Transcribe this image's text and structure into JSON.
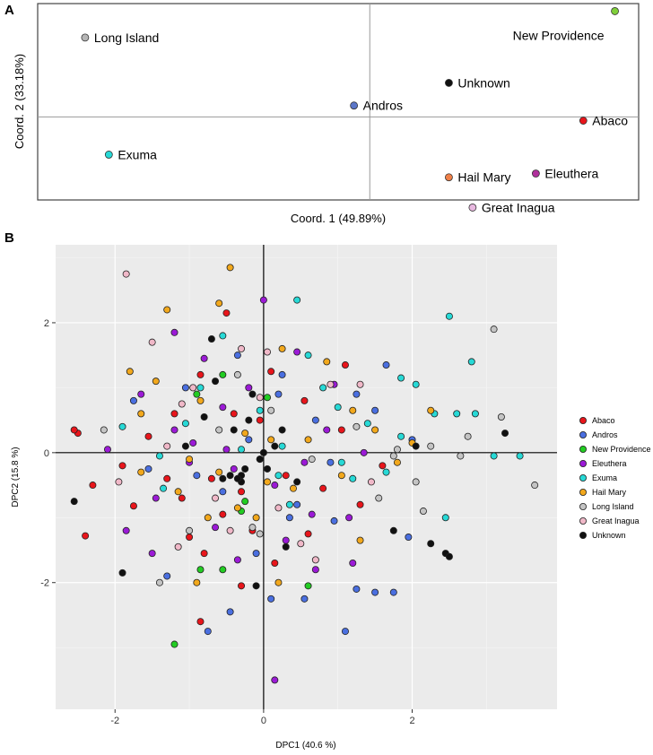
{
  "panel_a_label": "A",
  "panel_b_label": "B",
  "colors": {
    "Abaco": "#e8151b",
    "Andros": "#4a6fe0",
    "New Providence": "#22cc22",
    "Eleuthera": "#9b1ad6",
    "Exuma": "#27d9d6",
    "Hail Mary": "#f2a81c",
    "Long Island": "#c4c4c4",
    "Great Inagua": "#f0b8c8",
    "Unknown": "#111111"
  },
  "chart_data": [
    {
      "type": "scatter",
      "panel": "A",
      "xlabel": "Coord. 1 (49.89%)",
      "ylabel": "Coord. 2 (33.18%)",
      "xlim": [
        -0.42,
        0.34
      ],
      "ylim": [
        -0.22,
        0.3
      ],
      "points": [
        {
          "label": "Long Island",
          "x": -0.36,
          "y": 0.21,
          "color": "#b5b5b5"
        },
        {
          "label": "Exuma",
          "x": -0.33,
          "y": -0.1,
          "color": "#27d9d6"
        },
        {
          "label": "Andros",
          "x": -0.02,
          "y": 0.03,
          "color": "#5b76c8"
        },
        {
          "label": "Unknown",
          "x": 0.1,
          "y": 0.09,
          "color": "#111111"
        },
        {
          "label": "New Providence",
          "x": 0.31,
          "y": 0.28,
          "color": "#7fcf3a"
        },
        {
          "label": "Abaco",
          "x": 0.27,
          "y": -0.01,
          "color": "#e8151b"
        },
        {
          "label": "Eleuthera",
          "x": 0.21,
          "y": -0.15,
          "color": "#b0309c"
        },
        {
          "label": "Hail Mary",
          "x": 0.1,
          "y": -0.16,
          "color": "#f08048"
        },
        {
          "label": "Great Inagua",
          "x": 0.13,
          "y": -0.24,
          "color": "#e8b8e0"
        }
      ]
    },
    {
      "type": "scatter",
      "panel": "B",
      "xlabel": "DPC1 (40.6 %)",
      "ylabel": "DPC2 (15.8 %)",
      "xlim": [
        -2.8,
        3.95
      ],
      "ylim": [
        -3.95,
        3.2
      ],
      "x_ticks": [
        -2,
        0,
        2
      ],
      "y_ticks": [
        -2,
        0,
        2
      ],
      "x_tick_labels": [
        "-2",
        "0",
        "2"
      ],
      "y_tick_labels": [
        "-2",
        "0",
        "2"
      ],
      "legend_position": "right",
      "groups": [
        "Abaco",
        "Andros",
        "New Providence",
        "Eleuthera",
        "Exuma",
        "Hail Mary",
        "Long Island",
        "Great Inagua",
        "Unknown"
      ],
      "points": [
        [
          -2.5,
          0.3,
          "Abaco"
        ],
        [
          -2.55,
          0.35,
          "Abaco"
        ],
        [
          -2.4,
          -1.28,
          "Abaco"
        ],
        [
          -1.9,
          -0.2,
          "Abaco"
        ],
        [
          -1.75,
          -0.82,
          "Abaco"
        ],
        [
          -1.55,
          0.25,
          "Abaco"
        ],
        [
          -1.3,
          -0.4,
          "Abaco"
        ],
        [
          -1.2,
          0.6,
          "Abaco"
        ],
        [
          -1.0,
          -1.3,
          "Abaco"
        ],
        [
          -0.85,
          1.2,
          "Abaco"
        ],
        [
          -0.7,
          -0.4,
          "Abaco"
        ],
        [
          -0.55,
          -0.95,
          "Abaco"
        ],
        [
          -0.4,
          0.6,
          "Abaco"
        ],
        [
          -0.3,
          -0.6,
          "Abaco"
        ],
        [
          -0.15,
          -1.2,
          "Abaco"
        ],
        [
          -0.05,
          0.5,
          "Abaco"
        ],
        [
          0.1,
          1.25,
          "Abaco"
        ],
        [
          0.3,
          -0.35,
          "Abaco"
        ],
        [
          0.55,
          0.8,
          "Abaco"
        ],
        [
          0.8,
          -0.55,
          "Abaco"
        ],
        [
          1.1,
          1.35,
          "Abaco"
        ],
        [
          1.3,
          -0.8,
          "Abaco"
        ],
        [
          1.6,
          -0.2,
          "Abaco"
        ],
        [
          -0.3,
          -2.05,
          "Abaco"
        ],
        [
          -0.8,
          -1.55,
          "Abaco"
        ],
        [
          -0.5,
          2.15,
          "Abaco"
        ],
        [
          0.15,
          -1.7,
          "Abaco"
        ],
        [
          -1.1,
          -0.7,
          "Abaco"
        ],
        [
          1.05,
          0.35,
          "Abaco"
        ],
        [
          -0.85,
          -2.6,
          "Abaco"
        ],
        [
          -2.3,
          -0.5,
          "Abaco"
        ],
        [
          0.6,
          -1.25,
          "Abaco"
        ],
        [
          -1.75,
          0.8,
          "Andros"
        ],
        [
          -1.55,
          -0.25,
          "Andros"
        ],
        [
          -1.3,
          -1.9,
          "Andros"
        ],
        [
          -1.05,
          1.0,
          "Andros"
        ],
        [
          -0.9,
          -0.35,
          "Andros"
        ],
        [
          -0.75,
          -2.75,
          "Andros"
        ],
        [
          -0.45,
          -2.45,
          "Andros"
        ],
        [
          -0.35,
          1.5,
          "Andros"
        ],
        [
          -0.2,
          0.2,
          "Andros"
        ],
        [
          0.1,
          -2.25,
          "Andros"
        ],
        [
          0.2,
          0.9,
          "Andros"
        ],
        [
          0.35,
          -1.0,
          "Andros"
        ],
        [
          0.55,
          -2.25,
          "Andros"
        ],
        [
          0.7,
          0.5,
          "Andros"
        ],
        [
          0.9,
          -0.15,
          "Andros"
        ],
        [
          1.1,
          -2.75,
          "Andros"
        ],
        [
          1.25,
          0.9,
          "Andros"
        ],
        [
          1.5,
          -2.15,
          "Andros"
        ],
        [
          1.65,
          1.35,
          "Andros"
        ],
        [
          1.75,
          -2.15,
          "Andros"
        ],
        [
          1.95,
          -1.3,
          "Andros"
        ],
        [
          2.0,
          0.2,
          "Andros"
        ],
        [
          0.25,
          1.2,
          "Andros"
        ],
        [
          0.45,
          -0.8,
          "Andros"
        ],
        [
          -0.1,
          -1.55,
          "Andros"
        ],
        [
          1.25,
          -2.1,
          "Andros"
        ],
        [
          0.95,
          -1.05,
          "Andros"
        ],
        [
          -0.55,
          -0.6,
          "Andros"
        ],
        [
          1.5,
          0.65,
          "Andros"
        ],
        [
          -1.2,
          -2.95,
          "New Providence"
        ],
        [
          -0.9,
          0.9,
          "New Providence"
        ],
        [
          -0.55,
          -1.8,
          "New Providence"
        ],
        [
          -0.3,
          -0.9,
          "New Providence"
        ],
        [
          0.05,
          0.85,
          "New Providence"
        ],
        [
          0.6,
          -2.05,
          "New Providence"
        ],
        [
          -0.85,
          -1.8,
          "New Providence"
        ],
        [
          -0.25,
          -0.75,
          "New Providence"
        ],
        [
          -0.55,
          1.2,
          "New Providence"
        ],
        [
          -2.1,
          0.05,
          "Eleuthera"
        ],
        [
          -1.85,
          -1.2,
          "Eleuthera"
        ],
        [
          -1.65,
          0.9,
          "Eleuthera"
        ],
        [
          -1.45,
          -0.7,
          "Eleuthera"
        ],
        [
          -1.2,
          0.35,
          "Eleuthera"
        ],
        [
          -1.0,
          -0.15,
          "Eleuthera"
        ],
        [
          -0.8,
          1.45,
          "Eleuthera"
        ],
        [
          -0.65,
          -1.15,
          "Eleuthera"
        ],
        [
          -0.5,
          0.05,
          "Eleuthera"
        ],
        [
          -0.35,
          -1.65,
          "Eleuthera"
        ],
        [
          -0.2,
          1.0,
          "Eleuthera"
        ],
        [
          0.0,
          2.35,
          "Eleuthera"
        ],
        [
          0.15,
          -0.5,
          "Eleuthera"
        ],
        [
          0.3,
          -1.35,
          "Eleuthera"
        ],
        [
          0.45,
          1.55,
          "Eleuthera"
        ],
        [
          0.65,
          -0.95,
          "Eleuthera"
        ],
        [
          0.85,
          0.35,
          "Eleuthera"
        ],
        [
          1.15,
          -1.0,
          "Eleuthera"
        ],
        [
          1.35,
          0.0,
          "Eleuthera"
        ],
        [
          0.15,
          -3.5,
          "Eleuthera"
        ],
        [
          -1.2,
          1.85,
          "Eleuthera"
        ],
        [
          -0.55,
          0.7,
          "Eleuthera"
        ],
        [
          0.7,
          -1.8,
          "Eleuthera"
        ],
        [
          1.2,
          -1.7,
          "Eleuthera"
        ],
        [
          -1.5,
          -1.55,
          "Eleuthera"
        ],
        [
          -0.05,
          -0.1,
          "Eleuthera"
        ],
        [
          0.95,
          1.05,
          "Eleuthera"
        ],
        [
          -0.95,
          0.15,
          "Eleuthera"
        ],
        [
          0.55,
          -0.15,
          "Eleuthera"
        ],
        [
          -0.4,
          -0.25,
          "Eleuthera"
        ],
        [
          -1.9,
          0.4,
          "Exuma"
        ],
        [
          -1.4,
          -0.05,
          "Exuma"
        ],
        [
          -1.05,
          0.45,
          "Exuma"
        ],
        [
          -0.55,
          1.8,
          "Exuma"
        ],
        [
          -0.3,
          0.05,
          "Exuma"
        ],
        [
          -0.05,
          0.65,
          "Exuma"
        ],
        [
          0.2,
          -0.35,
          "Exuma"
        ],
        [
          0.45,
          2.35,
          "Exuma"
        ],
        [
          0.6,
          1.5,
          "Exuma"
        ],
        [
          0.8,
          1.0,
          "Exuma"
        ],
        [
          1.0,
          0.7,
          "Exuma"
        ],
        [
          1.2,
          -0.4,
          "Exuma"
        ],
        [
          1.4,
          0.45,
          "Exuma"
        ],
        [
          1.65,
          -0.3,
          "Exuma"
        ],
        [
          1.85,
          0.25,
          "Exuma"
        ],
        [
          2.05,
          1.05,
          "Exuma"
        ],
        [
          2.3,
          0.6,
          "Exuma"
        ],
        [
          2.5,
          2.1,
          "Exuma"
        ],
        [
          2.6,
          0.6,
          "Exuma"
        ],
        [
          2.8,
          1.4,
          "Exuma"
        ],
        [
          2.85,
          0.6,
          "Exuma"
        ],
        [
          3.1,
          -0.05,
          "Exuma"
        ],
        [
          3.45,
          -0.05,
          "Exuma"
        ],
        [
          2.45,
          -1.0,
          "Exuma"
        ],
        [
          1.85,
          1.15,
          "Exuma"
        ],
        [
          0.35,
          -0.8,
          "Exuma"
        ],
        [
          -0.85,
          1.0,
          "Exuma"
        ],
        [
          -1.35,
          -0.55,
          "Exuma"
        ],
        [
          0.25,
          0.1,
          "Exuma"
        ],
        [
          1.05,
          -0.15,
          "Exuma"
        ],
        [
          -1.8,
          1.25,
          "Hail Mary"
        ],
        [
          -1.65,
          0.6,
          "Hail Mary"
        ],
        [
          -1.3,
          2.2,
          "Hail Mary"
        ],
        [
          -1.15,
          -0.6,
          "Hail Mary"
        ],
        [
          -1.0,
          -0.1,
          "Hail Mary"
        ],
        [
          -0.85,
          0.8,
          "Hail Mary"
        ],
        [
          -0.75,
          -1.0,
          "Hail Mary"
        ],
        [
          -0.6,
          2.3,
          "Hail Mary"
        ],
        [
          -0.45,
          2.85,
          "Hail Mary"
        ],
        [
          -0.25,
          0.3,
          "Hail Mary"
        ],
        [
          -0.1,
          -1.0,
          "Hail Mary"
        ],
        [
          0.1,
          0.2,
          "Hail Mary"
        ],
        [
          0.25,
          1.6,
          "Hail Mary"
        ],
        [
          0.4,
          -0.55,
          "Hail Mary"
        ],
        [
          0.6,
          0.2,
          "Hail Mary"
        ],
        [
          0.85,
          1.4,
          "Hail Mary"
        ],
        [
          1.05,
          -0.35,
          "Hail Mary"
        ],
        [
          1.3,
          -1.35,
          "Hail Mary"
        ],
        [
          1.5,
          0.35,
          "Hail Mary"
        ],
        [
          1.8,
          -0.15,
          "Hail Mary"
        ],
        [
          2.0,
          0.15,
          "Hail Mary"
        ],
        [
          2.25,
          0.65,
          "Hail Mary"
        ],
        [
          -1.65,
          -0.3,
          "Hail Mary"
        ],
        [
          -0.9,
          -2.0,
          "Hail Mary"
        ],
        [
          0.2,
          -2.0,
          "Hail Mary"
        ],
        [
          -0.35,
          -0.85,
          "Hail Mary"
        ],
        [
          0.05,
          -0.45,
          "Hail Mary"
        ],
        [
          -1.45,
          1.1,
          "Hail Mary"
        ],
        [
          1.2,
          0.65,
          "Hail Mary"
        ],
        [
          -0.6,
          -0.3,
          "Hail Mary"
        ],
        [
          -2.15,
          0.35,
          "Long Island"
        ],
        [
          -1.4,
          -2.0,
          "Long Island"
        ],
        [
          -1.0,
          -1.2,
          "Long Island"
        ],
        [
          -0.6,
          0.35,
          "Long Island"
        ],
        [
          -0.35,
          1.2,
          "Long Island"
        ],
        [
          -0.15,
          -1.15,
          "Long Island"
        ],
        [
          0.1,
          0.65,
          "Long Island"
        ],
        [
          0.65,
          -0.1,
          "Long Island"
        ],
        [
          1.25,
          0.4,
          "Long Island"
        ],
        [
          1.55,
          -0.7,
          "Long Island"
        ],
        [
          1.8,
          0.05,
          "Long Island"
        ],
        [
          2.05,
          -0.45,
          "Long Island"
        ],
        [
          2.25,
          0.1,
          "Long Island"
        ],
        [
          2.65,
          -0.05,
          "Long Island"
        ],
        [
          2.75,
          0.25,
          "Long Island"
        ],
        [
          3.1,
          1.9,
          "Long Island"
        ],
        [
          3.2,
          0.55,
          "Long Island"
        ],
        [
          3.65,
          -0.5,
          "Long Island"
        ],
        [
          2.15,
          -0.9,
          "Long Island"
        ],
        [
          1.75,
          -0.05,
          "Long Island"
        ],
        [
          -0.05,
          -1.25,
          "Long Island"
        ],
        [
          -1.95,
          -0.45,
          "Great Inagua"
        ],
        [
          -1.85,
          2.75,
          "Great Inagua"
        ],
        [
          -1.3,
          0.1,
          "Great Inagua"
        ],
        [
          -1.15,
          -1.45,
          "Great Inagua"
        ],
        [
          -0.95,
          1.0,
          "Great Inagua"
        ],
        [
          -0.65,
          -0.7,
          "Great Inagua"
        ],
        [
          -0.3,
          1.6,
          "Great Inagua"
        ],
        [
          -0.05,
          0.85,
          "Great Inagua"
        ],
        [
          0.2,
          -0.85,
          "Great Inagua"
        ],
        [
          0.5,
          -1.4,
          "Great Inagua"
        ],
        [
          0.7,
          -1.65,
          "Great Inagua"
        ],
        [
          0.9,
          1.05,
          "Great Inagua"
        ],
        [
          1.3,
          1.05,
          "Great Inagua"
        ],
        [
          1.45,
          -0.45,
          "Great Inagua"
        ],
        [
          -1.1,
          0.75,
          "Great Inagua"
        ],
        [
          -0.45,
          -1.2,
          "Great Inagua"
        ],
        [
          0.05,
          1.55,
          "Great Inagua"
        ],
        [
          -1.5,
          1.7,
          "Great Inagua"
        ],
        [
          -2.55,
          -0.75,
          "Unknown"
        ],
        [
          -1.9,
          -1.85,
          "Unknown"
        ],
        [
          -1.05,
          0.1,
          "Unknown"
        ],
        [
          -0.8,
          0.55,
          "Unknown"
        ],
        [
          -0.65,
          1.1,
          "Unknown"
        ],
        [
          -0.55,
          -0.4,
          "Unknown"
        ],
        [
          -0.4,
          0.35,
          "Unknown"
        ],
        [
          -0.3,
          -0.45,
          "Unknown"
        ],
        [
          -0.2,
          0.5,
          "Unknown"
        ],
        [
          -0.15,
          0.9,
          "Unknown"
        ],
        [
          -0.05,
          -0.1,
          "Unknown"
        ],
        [
          0.05,
          -0.25,
          "Unknown"
        ],
        [
          0.15,
          0.1,
          "Unknown"
        ],
        [
          0.3,
          -1.45,
          "Unknown"
        ],
        [
          0.45,
          -0.45,
          "Unknown"
        ],
        [
          -0.3,
          -0.35,
          "Unknown"
        ],
        [
          -0.45,
          -0.35,
          "Unknown"
        ],
        [
          -0.35,
          -0.4,
          "Unknown"
        ],
        [
          2.05,
          0.1,
          "Unknown"
        ],
        [
          2.25,
          -1.4,
          "Unknown"
        ],
        [
          2.45,
          -1.55,
          "Unknown"
        ],
        [
          2.5,
          -1.6,
          "Unknown"
        ],
        [
          3.25,
          0.3,
          "Unknown"
        ],
        [
          1.75,
          -1.2,
          "Unknown"
        ],
        [
          -0.1,
          -2.05,
          "Unknown"
        ],
        [
          -0.7,
          1.75,
          "Unknown"
        ],
        [
          0.25,
          0.35,
          "Unknown"
        ],
        [
          -0.25,
          -0.25,
          "Unknown"
        ],
        [
          0.0,
          0.0,
          "Unknown"
        ]
      ]
    }
  ]
}
